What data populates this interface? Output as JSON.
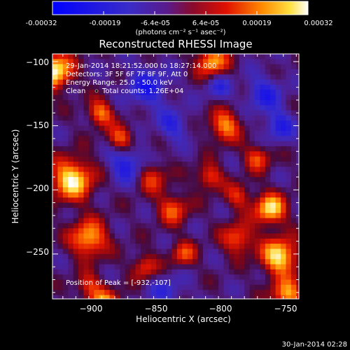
{
  "colorbar": {
    "ticks": [
      "-0.00032",
      "-0.00019",
      "-6.4e-05",
      "6.4e-05",
      "0.00019",
      "0.00032"
    ],
    "units": "(photons cm⁻² s⁻¹ asec⁻²)",
    "range": [
      -0.00032,
      0.00032
    ]
  },
  "chart_data": {
    "type": "heatmap",
    "title": "Reconstructed RHESSI Image",
    "xlabel": "Heliocentric X (arcsec)",
    "ylabel": "Heliocentric Y (arcsec)",
    "xlim": [
      -933,
      -743
    ],
    "ylim": [
      -285,
      -94
    ],
    "x_ticks": [
      "−900",
      "−850",
      "−800",
      "−750"
    ],
    "y_ticks": [
      "−100",
      "−150",
      "−200",
      "−250"
    ],
    "x_tick_values": [
      -900,
      -850,
      -800,
      -750
    ],
    "y_tick_values": [
      -100,
      -150,
      -200,
      -250
    ],
    "annotations": [
      "29-Jan-2014 18:21:52.000 to 18:27:14.000",
      "Detectors: 3F 5F 6F 7F 8F 9F, Att 0",
      "Energy Range: 25.0 - 50.0 keV",
      "Clean",
      "Total counts: 1.26E+04",
      "Position of Peak = [-932,-107]"
    ],
    "peak": [
      -932,
      -107
    ],
    "colormap": "blue-purple-red-yellow-white"
  },
  "footer": {
    "timestamp": "30-Jan-2014 02:28"
  }
}
